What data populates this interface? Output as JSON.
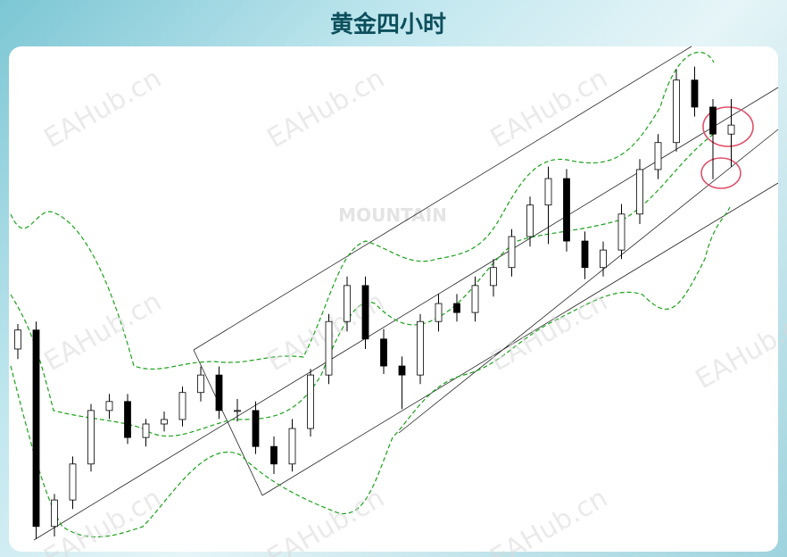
{
  "chart_data": {
    "type": "candlestick",
    "title": "黄金四小时",
    "watermark": "EAHub.cn",
    "logo": "MOUNTAIN",
    "up_color": "#ffffff",
    "down_color": "#000000",
    "ylim": [
      0,
      100
    ],
    "open": [
      40.0,
      43.8,
      4.5,
      9.8,
      17.0,
      27.7,
      29.5,
      22.3,
      25.0,
      25.9,
      31.3,
      34.8,
      27.7,
      27.7,
      20.5,
      17.0,
      24.1,
      34.8,
      45.5,
      52.7,
      42.0,
      36.6,
      34.8,
      45.5,
      49.1,
      47.3,
      52.7,
      56.3,
      62.5,
      68.8,
      74.1,
      61.6,
      56.3,
      59.8,
      67.0,
      75.9,
      81.3,
      93.8,
      88.4,
      83.0
    ],
    "high": [
      45.0,
      45.5,
      11.0,
      18.5,
      29.0,
      31.0,
      31.0,
      26.0,
      27.5,
      32.5,
      36.5,
      36.5,
      30.0,
      29.5,
      22.5,
      26.0,
      36.0,
      47.0,
      54.5,
      54.5,
      44.0,
      38.5,
      47.0,
      51.0,
      51.0,
      54.5,
      58.0,
      64.0,
      70.5,
      76.5,
      76.0,
      63.5,
      61.5,
      69.0,
      78.0,
      83.0,
      96.0,
      96.5,
      90.0,
      90.0
    ],
    "low": [
      38.0,
      2.0,
      2.5,
      8.0,
      15.5,
      26.0,
      21.0,
      20.5,
      23.5,
      24.5,
      29.5,
      26.0,
      25.5,
      19.0,
      15.0,
      15.5,
      22.5,
      33.0,
      43.5,
      40.0,
      35.0,
      28.0,
      33.0,
      43.5,
      45.5,
      45.5,
      50.5,
      54.5,
      60.5,
      61.0,
      59.5,
      54.0,
      54.5,
      58.0,
      65.0,
      74.0,
      79.5,
      86.5,
      74.0,
      76.5
    ],
    "close": [
      43.8,
      4.5,
      9.8,
      17.0,
      27.7,
      29.5,
      22.3,
      25.0,
      25.9,
      31.3,
      34.8,
      27.7,
      27.7,
      20.5,
      17.0,
      24.1,
      34.8,
      45.5,
      52.7,
      42.0,
      36.6,
      34.8,
      45.5,
      49.1,
      47.3,
      52.7,
      56.3,
      62.5,
      68.8,
      74.1,
      61.6,
      56.3,
      59.8,
      67.0,
      75.9,
      81.3,
      93.8,
      88.4,
      83.0,
      84.8
    ]
  }
}
